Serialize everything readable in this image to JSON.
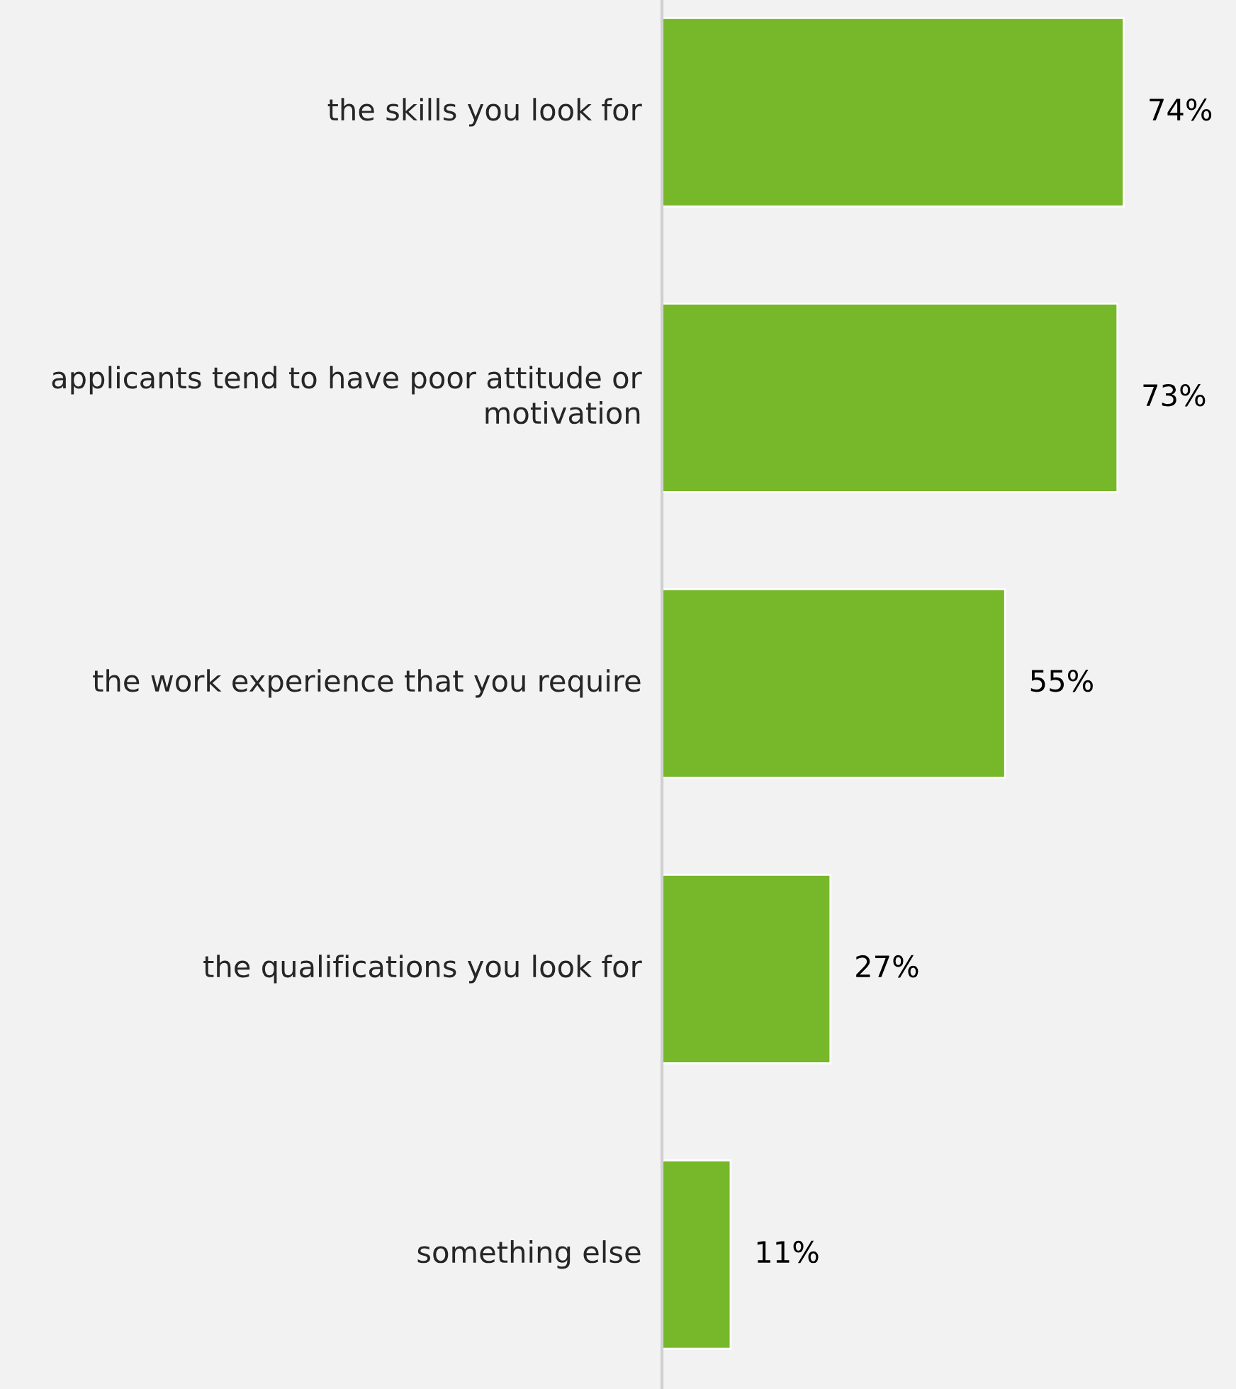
{
  "chart_data": {
    "type": "bar",
    "orientation": "horizontal",
    "categories": [
      "the skills you look for",
      "applicants tend to have poor attitude or motivation",
      "the work experience that you require",
      "the qualifications you look for",
      "something else"
    ],
    "values": [
      74,
      73,
      55,
      27,
      11
    ],
    "value_labels": [
      "74%",
      "73%",
      "55%",
      "27%",
      "11%"
    ],
    "color": "#76b82a",
    "xlim": [
      0,
      92
    ],
    "tick_labels": "y",
    "grid": false,
    "legend": false
  }
}
